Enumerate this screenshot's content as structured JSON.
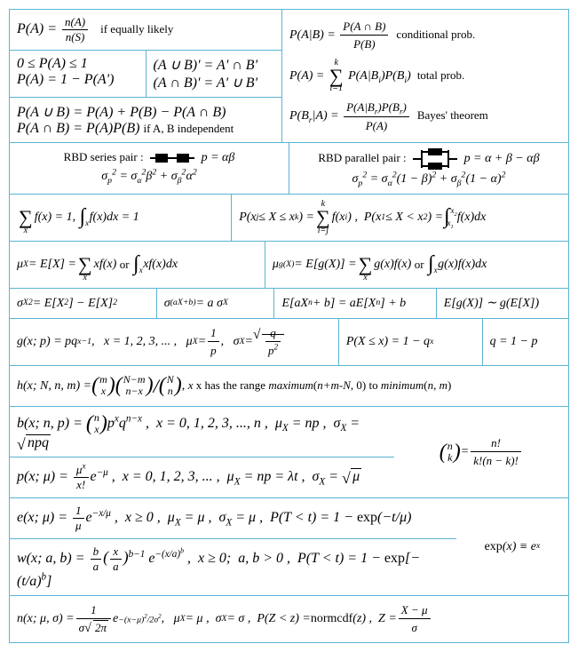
{
  "colors": {
    "border": "#5ab4d4",
    "text": "#000000",
    "background": "#ffffff"
  },
  "labels": {
    "equally_likely": "if equally likely",
    "conditional": "conditional prob.",
    "total_prob": "total prob.",
    "bayes": "Bayes' theorem",
    "independent": "if A, B independent",
    "rbd_series": "RBD series pair :",
    "rbd_parallel": "RBD parallel pair :",
    "or": "or",
    "range_text": "x has the range",
    "maximum": "maximum",
    "minimum": "minimum",
    "to": "to",
    "normcdf": "normcdf",
    "exp": "exp"
  },
  "symbols": {
    "P": "P",
    "A": "A",
    "B": "B",
    "S": "S",
    "n": "n",
    "cap": "∩",
    "cup": "∪",
    "prime": "'",
    "leq": "≤",
    "sum": "∑",
    "int": "∫",
    "mu": "μ",
    "sigma": "σ",
    "alpha": "α",
    "beta": "β",
    "lambda": "λ",
    "pi": "π",
    "E": "E",
    "X": "X",
    "f": "f",
    "g": "g",
    "x": "x",
    "p": "p",
    "q": "q",
    "k": "k",
    "i": "i",
    "j": "j",
    "N": "N",
    "m": "m",
    "h": "h",
    "b": "b",
    "e": "e",
    "w": "w",
    "a": "a",
    "t": "t",
    "T": "T",
    "Z": "Z",
    "z": "z",
    "sim": "∼",
    "equiv": "≡",
    "geq": "≥",
    "lt": "<"
  }
}
